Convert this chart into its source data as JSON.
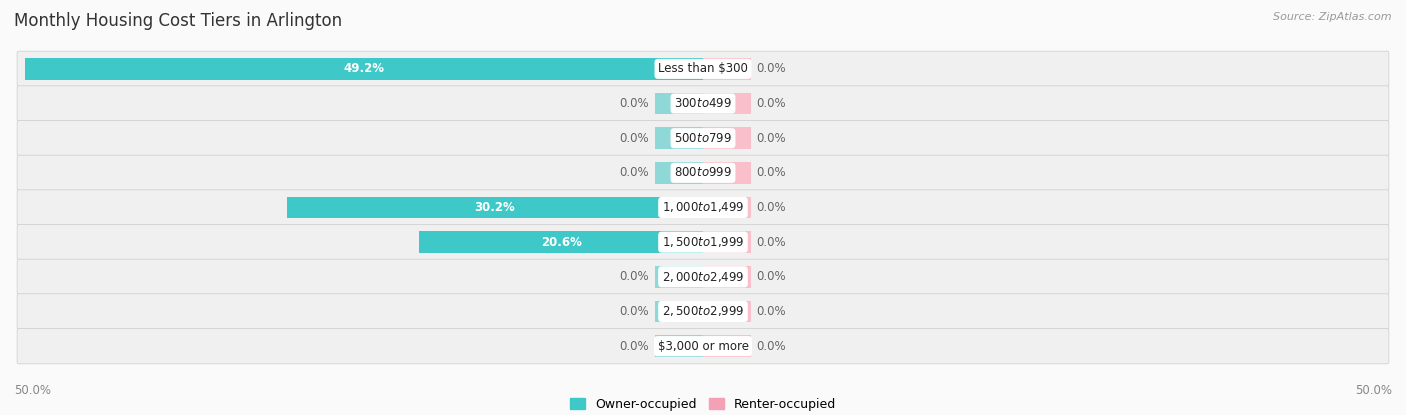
{
  "title": "Monthly Housing Cost Tiers in Arlington",
  "source": "Source: ZipAtlas.com",
  "categories": [
    "Less than $300",
    "$300 to $499",
    "$500 to $799",
    "$800 to $999",
    "$1,000 to $1,499",
    "$1,500 to $1,999",
    "$2,000 to $2,499",
    "$2,500 to $2,999",
    "$3,000 or more"
  ],
  "owner_values": [
    49.2,
    0.0,
    0.0,
    0.0,
    30.2,
    20.6,
    0.0,
    0.0,
    0.0
  ],
  "renter_values": [
    0.0,
    0.0,
    0.0,
    0.0,
    0.0,
    0.0,
    0.0,
    0.0,
    0.0
  ],
  "owner_color": "#3EC8C8",
  "renter_color": "#F4A0B5",
  "owner_stub_color": "#8ED8D8",
  "renter_stub_color": "#F9C0CC",
  "row_bg_color": "#F0F0F0",
  "row_bg_alt": "#E8E8E8",
  "bg_color": "#FAFAFA",
  "max_val": 50.0,
  "stub_size": 3.5,
  "label_fontsize": 8.5,
  "cat_fontsize": 8.5,
  "title_fontsize": 12,
  "source_fontsize": 8,
  "legend_fontsize": 9
}
